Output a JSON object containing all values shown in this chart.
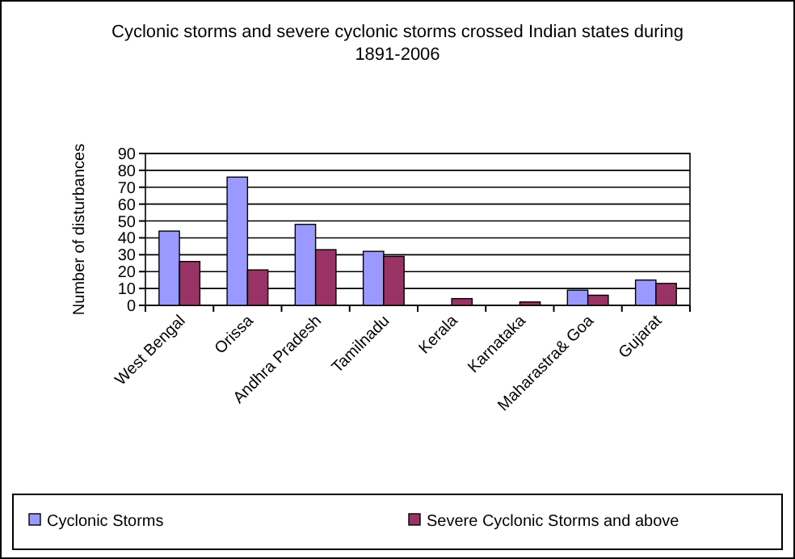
{
  "chart_data": {
    "type": "bar",
    "title": "Cyclonic storms and severe cyclonic storms crossed Indian states during 1891-2006",
    "ylabel": "Number of disturbances",
    "categories": [
      "West Bengal",
      "Orissa",
      "Andhra Pradesh",
      "Tamilnadu",
      "Kerala",
      "Karnataka",
      "Maharastra& Goa",
      "Gujarat"
    ],
    "series": [
      {
        "name": "Cyclonic Storms",
        "color": "#9999ff",
        "values": [
          44,
          76,
          48,
          32,
          0,
          0,
          9,
          15
        ]
      },
      {
        "name": "Severe Cyclonic Storms and above",
        "color": "#993366",
        "values": [
          26,
          21,
          33,
          29,
          4,
          2,
          6,
          13
        ]
      }
    ],
    "ylim": [
      0,
      90
    ],
    "yticks": [
      0,
      10,
      20,
      30,
      40,
      50,
      60,
      70,
      80,
      90
    ],
    "grid": "y",
    "legend": "bottom"
  }
}
